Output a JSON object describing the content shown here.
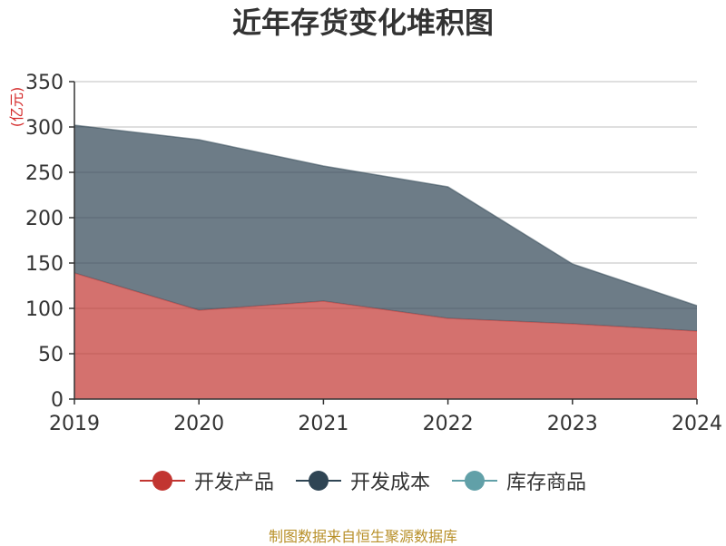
{
  "title": "近年存货变化堆积图",
  "unit_label": "(亿元)",
  "source_note": "制图数据来自恒生聚源数据库",
  "chart_data": {
    "type": "area",
    "stacked": true,
    "categories": [
      "2019",
      "2020",
      "2021",
      "2022",
      "2023",
      "2024"
    ],
    "series": [
      {
        "name": "开发产品",
        "values": [
          139,
          98,
          108,
          89,
          83,
          75
        ],
        "color": "#c23531"
      },
      {
        "name": "开发成本",
        "values": [
          163,
          188,
          149,
          145,
          66,
          28
        ],
        "color": "#2f4554"
      },
      {
        "name": "库存商品",
        "values": [
          0,
          0,
          0,
          0,
          0,
          0
        ],
        "color": "#61a0a8"
      }
    ],
    "ylim": [
      0,
      350
    ],
    "yticks": [
      "0",
      "50",
      "100",
      "150",
      "200",
      "250",
      "300",
      "350"
    ],
    "grid": true,
    "legend_position": "bottom"
  }
}
